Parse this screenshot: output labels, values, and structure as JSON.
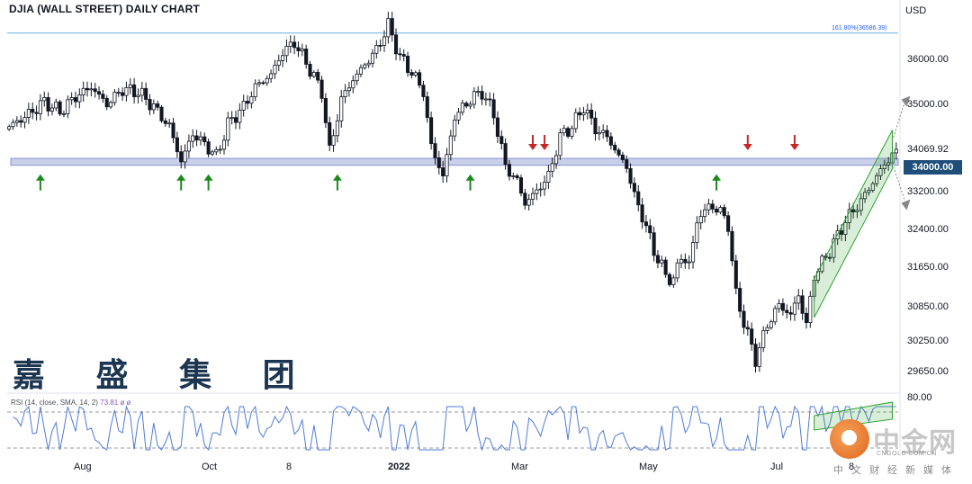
{
  "header": {
    "title": "DJIA (WALL STREET) DAILY CHART",
    "currency": "USD"
  },
  "watermark": {
    "brand_text": "嘉 盛 集 团"
  },
  "logo": {
    "icon": "zhongjin-logo-icon",
    "name": "中金网",
    "domain": "CNGOLD.COM.CN",
    "tagline": "中文财经新媒体"
  },
  "colors": {
    "up": "#ffffff",
    "down": "#131722",
    "support_band": "#3f51b5",
    "up_arrow": "#1b8a1b",
    "down_arrow": "#c62828",
    "channel": "#2ea32e",
    "rsi_line": "#4f7bd9",
    "price_tag": "#1e4e79"
  },
  "chart_data": [
    {
      "type": "candlestick",
      "title": "DJIA (WALL STREET) DAILY CHART",
      "ylabel": "USD",
      "x_tick_labels": [
        "Aug",
        "Oct",
        "8",
        "2022",
        "Mar",
        "May",
        "Jul",
        "8"
      ],
      "y_tick_labels": [
        "36000.00",
        "35000.00",
        "34069.92",
        "34000.00",
        "33200.00",
        "32400.00",
        "31650.00",
        "30850.00",
        "30250.00",
        "29650.00"
      ],
      "ylim": [
        29450,
        37000
      ],
      "current_price": "34000.00",
      "last_price": "34069.92",
      "fibonacci": {
        "label": "161.80%(36586.39)",
        "level": 36586.39
      },
      "support_zone": [
        33920,
        34060
      ],
      "path": [
        [
          0,
          34700
        ],
        [
          5,
          34950
        ],
        [
          9,
          35200
        ],
        [
          13,
          35000
        ],
        [
          17,
          35300
        ],
        [
          21,
          35500
        ],
        [
          25,
          35150
        ],
        [
          29,
          35450
        ],
        [
          33,
          35400
        ],
        [
          37,
          35100
        ],
        [
          41,
          34700
        ],
        [
          44,
          34000
        ],
        [
          47,
          34550
        ],
        [
          50,
          34350
        ],
        [
          53,
          34100
        ],
        [
          56,
          34750
        ],
        [
          60,
          35100
        ],
        [
          63,
          35500
        ],
        [
          67,
          35750
        ],
        [
          70,
          36200
        ],
        [
          73,
          36400
        ],
        [
          77,
          35850
        ],
        [
          80,
          35400
        ],
        [
          82,
          34200
        ],
        [
          85,
          35250
        ],
        [
          88,
          35650
        ],
        [
          91,
          35950
        ],
        [
          94,
          36250
        ],
        [
          97,
          36750
        ],
        [
          100,
          36100
        ],
        [
          103,
          35800
        ],
        [
          106,
          35400
        ],
        [
          108,
          34300
        ],
        [
          111,
          33700
        ],
        [
          114,
          34900
        ],
        [
          118,
          35250
        ],
        [
          121,
          35400
        ],
        [
          124,
          34950
        ],
        [
          127,
          33900
        ],
        [
          130,
          33600
        ],
        [
          132,
          33150
        ],
        [
          135,
          33400
        ],
        [
          138,
          33700
        ],
        [
          141,
          34500
        ],
        [
          144,
          34700
        ],
        [
          147,
          35100
        ],
        [
          150,
          34650
        ],
        [
          153,
          34500
        ],
        [
          156,
          34100
        ],
        [
          158,
          33900
        ],
        [
          160,
          33300
        ],
        [
          162,
          32900
        ],
        [
          165,
          32200
        ],
        [
          168,
          31700
        ],
        [
          170,
          31600
        ],
        [
          172,
          32100
        ],
        [
          174,
          31900
        ],
        [
          176,
          32800
        ],
        [
          179,
          33100
        ],
        [
          182,
          33000
        ],
        [
          184,
          32700
        ],
        [
          186,
          31300
        ],
        [
          189,
          30500
        ],
        [
          191,
          30000
        ],
        [
          194,
          30700
        ],
        [
          197,
          31100
        ],
        [
          200,
          30900
        ],
        [
          202,
          31300
        ],
        [
          204,
          30700
        ],
        [
          206,
          31700
        ],
        [
          210,
          32200
        ],
        [
          214,
          32800
        ],
        [
          218,
          33200
        ],
        [
          222,
          33700
        ],
        [
          226,
          34150
        ]
      ],
      "annotations": {
        "support_arrows_up_at": [
          8,
          44,
          51,
          84,
          118,
          181
        ],
        "resistance_arrows_down_at": [
          134,
          137,
          189,
          201
        ]
      },
      "channel": {
        "lower_start": [
          206,
          30850
        ],
        "lower_end": [
          226,
          33850
        ],
        "width": 780
      }
    },
    {
      "type": "line",
      "title": "RSI (14, close, SMA, 14, 2)",
      "label": "RSI (14, close, SMA, 14, 2)",
      "last_value": "73.81",
      "flags": "ø ø",
      "y_tick_labels": [
        "80.00"
      ],
      "ylim": [
        25,
        82
      ],
      "levels": [
        70,
        30
      ]
    }
  ]
}
